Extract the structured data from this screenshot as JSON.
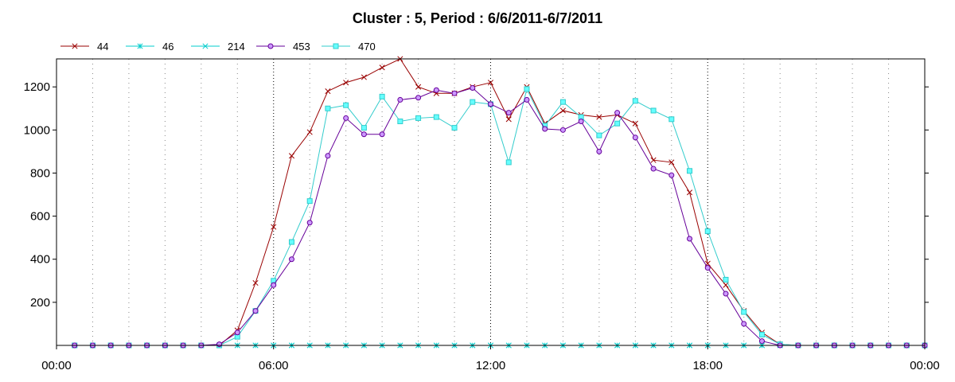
{
  "chart_data": {
    "type": "line",
    "title": "Cluster : 5, Period : 6/6/2011-6/7/2011",
    "xlabel": "",
    "ylabel": "",
    "x_tick_labels": [
      "00:00",
      "06:00",
      "12:00",
      "18:00",
      "00:00"
    ],
    "y_ticks": [
      200,
      400,
      600,
      800,
      1000,
      1200
    ],
    "xlim": [
      0,
      24
    ],
    "ylim": [
      0,
      1330
    ],
    "grid": "dotted vertical",
    "legend_position": "top-left",
    "x": [
      0.5,
      1.0,
      1.5,
      2.0,
      2.5,
      3.0,
      3.5,
      4.0,
      4.5,
      5.0,
      5.5,
      6.0,
      6.5,
      7.0,
      7.5,
      8.0,
      8.5,
      9.0,
      9.5,
      10.0,
      10.5,
      11.0,
      11.5,
      12.0,
      12.5,
      13.0,
      13.5,
      14.0,
      14.5,
      15.0,
      15.5,
      16.0,
      16.5,
      17.0,
      17.5,
      18.0,
      18.5,
      19.0,
      19.5,
      20.0,
      20.5,
      21.0,
      21.5,
      22.0,
      22.5,
      23.0,
      23.5,
      24.0
    ],
    "series": [
      {
        "name": "44",
        "color": "#990000",
        "marker": "x",
        "values": [
          0,
          0,
          0,
          0,
          0,
          0,
          0,
          0,
          0,
          70,
          290,
          550,
          880,
          990,
          1180,
          1220,
          1245,
          1290,
          1330,
          1200,
          1170,
          1170,
          1200,
          1220,
          1050,
          1200,
          1030,
          1090,
          1070,
          1060,
          1070,
          1030,
          860,
          850,
          710,
          380,
          280,
          160,
          60,
          5,
          0,
          0,
          0,
          0,
          0,
          0,
          0,
          0
        ]
      },
      {
        "name": "46",
        "color": "#00cccc",
        "marker": "*",
        "values": [
          0,
          0,
          0,
          0,
          0,
          0,
          0,
          0,
          0,
          0,
          0,
          0,
          0,
          0,
          0,
          0,
          0,
          0,
          0,
          0,
          0,
          0,
          0,
          0,
          0,
          0,
          0,
          0,
          0,
          0,
          0,
          0,
          0,
          0,
          0,
          0,
          0,
          0,
          0,
          0,
          0,
          0,
          0,
          0,
          0,
          0,
          0,
          0
        ]
      },
      {
        "name": "214",
        "color": "#00cccc",
        "marker": "x",
        "values": [
          0,
          0,
          0,
          0,
          0,
          0,
          0,
          0,
          0,
          0,
          0,
          0,
          0,
          0,
          0,
          0,
          0,
          0,
          0,
          0,
          0,
          0,
          0,
          0,
          0,
          0,
          0,
          0,
          0,
          0,
          0,
          0,
          0,
          0,
          0,
          0,
          0,
          0,
          0,
          0,
          0,
          0,
          0,
          0,
          0,
          0,
          0,
          0
        ]
      },
      {
        "name": "453",
        "color": "#660099",
        "marker": "o",
        "values": [
          0,
          0,
          0,
          0,
          0,
          0,
          0,
          0,
          5,
          60,
          160,
          280,
          400,
          570,
          880,
          1055,
          980,
          980,
          1140,
          1150,
          1185,
          1170,
          1195,
          1120,
          1080,
          1140,
          1005,
          1000,
          1040,
          900,
          1080,
          965,
          820,
          790,
          495,
          360,
          240,
          100,
          20,
          0,
          0,
          0,
          0,
          0,
          0,
          0,
          0,
          0
        ]
      },
      {
        "name": "470",
        "color": "#33cccc",
        "marker": "s",
        "values": [
          0,
          0,
          0,
          0,
          0,
          0,
          0,
          0,
          0,
          40,
          160,
          300,
          480,
          670,
          1100,
          1115,
          1010,
          1155,
          1040,
          1055,
          1060,
          1010,
          1130,
          1120,
          850,
          1190,
          1020,
          1130,
          1060,
          975,
          1030,
          1135,
          1090,
          1050,
          810,
          530,
          305,
          155,
          50,
          5,
          0,
          0,
          0,
          0,
          0,
          0,
          0,
          0
        ]
      }
    ]
  }
}
